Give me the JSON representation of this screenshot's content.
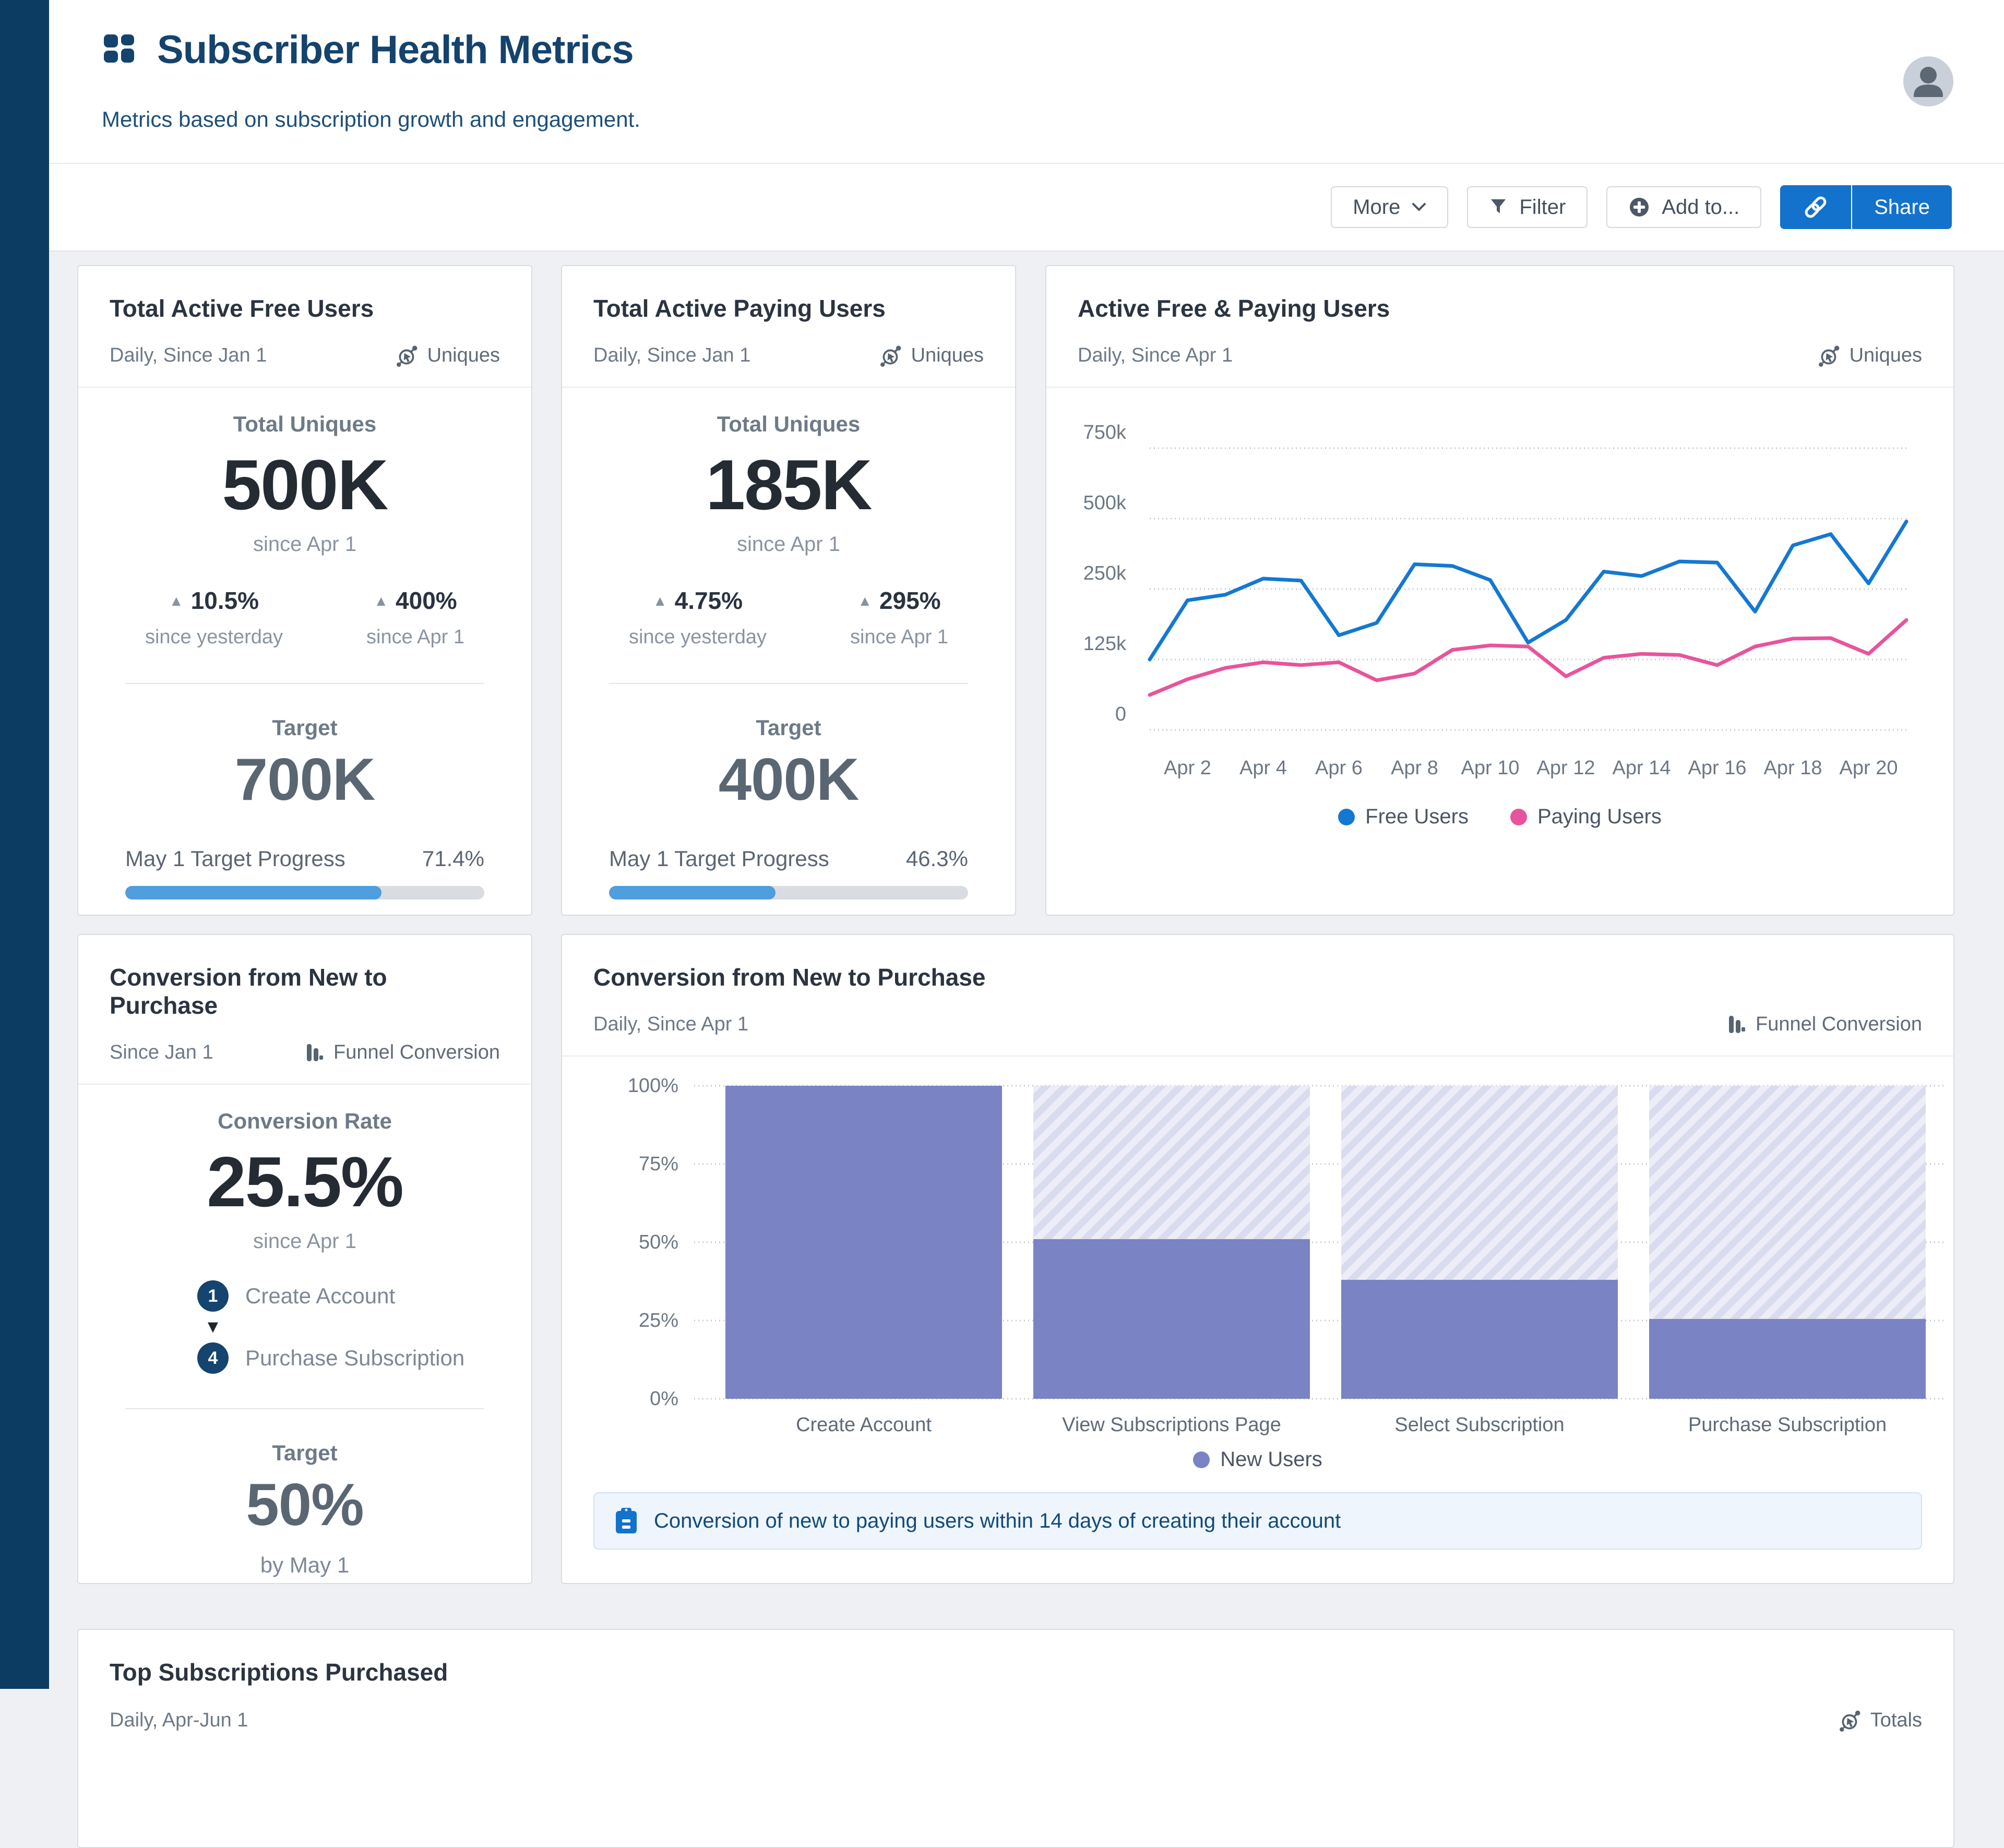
{
  "page": {
    "title": "Subscriber Health Metrics",
    "subtitle": "Metrics based on subscription growth and engagement."
  },
  "toolbar": {
    "more_label": "More",
    "filter_label": "Filter",
    "add_to_label": "Add to...",
    "share_label": "Share"
  },
  "colors": {
    "accent_blue": "#1272cc",
    "progress_blue": "#4f9edd",
    "line_blue": "#1478D2",
    "line_pink": "#E8549B",
    "bar_purple": "#7A83C3",
    "navy": "#14436d",
    "sidebar_navy": "#0d3c63"
  },
  "cards": {
    "free_users": {
      "title": "Total Active Free Users",
      "meta": "Daily, Since Jan 1",
      "badge": "Uniques",
      "metric_label": "Total Uniques",
      "value": "500K",
      "since": "since Apr 1",
      "delta1_value": "10.5%",
      "delta1_caption": "since yesterday",
      "delta2_value": "400%",
      "delta2_caption": "since Apr 1",
      "target_label": "Target",
      "target_value": "700K",
      "progress_label": "May 1 Target Progress",
      "progress_pct": "71.4%",
      "progress_width": 71.4
    },
    "paying_users": {
      "title": "Total Active Paying Users",
      "meta": "Daily, Since Jan 1",
      "badge": "Uniques",
      "metric_label": "Total Uniques",
      "value": "185K",
      "since": "since Apr 1",
      "delta1_value": "4.75%",
      "delta1_caption": "since yesterday",
      "delta2_value": "295%",
      "delta2_caption": "since Apr 1",
      "target_label": "Target",
      "target_value": "400K",
      "progress_label": "May 1 Target Progress",
      "progress_pct": "46.3%",
      "progress_width": 46.3
    },
    "line_chart_card": {
      "title": "Active Free & Paying Users",
      "meta": "Daily, Since Apr 1",
      "badge": "Uniques"
    },
    "funnel_kpi": {
      "title": "Conversion from New to Purchase",
      "meta": "Since Jan 1",
      "badge": "Funnel Conversion",
      "metric_label": "Conversion Rate",
      "value": "25.5%",
      "since": "since Apr 1",
      "steps": [
        {
          "num": "1",
          "label": "Create Account"
        },
        {
          "num": "4",
          "label": "Purchase Subscription"
        }
      ],
      "target_label": "Target",
      "target_value": "50%",
      "target_caption": "by May 1"
    },
    "funnel_chart_card": {
      "title": "Conversion from New to Purchase",
      "meta": "Daily, Since Apr 1",
      "badge": "Funnel Conversion",
      "note": "Conversion of new to paying users within 14 days of creating their account"
    },
    "bottom_card": {
      "title": "Top Subscriptions Purchased",
      "meta": "Daily, Apr-Jun 1",
      "badge": "Totals"
    }
  },
  "chart_data": [
    {
      "type": "line",
      "title": "Active Free & Paying Users",
      "x": [
        "Apr 1",
        "Apr 2",
        "Apr 3",
        "Apr 4",
        "Apr 5",
        "Apr 6",
        "Apr 7",
        "Apr 8",
        "Apr 9",
        "Apr 10",
        "Apr 11",
        "Apr 12",
        "Apr 13",
        "Apr 14",
        "Apr 15",
        "Apr 16",
        "Apr 17",
        "Apr 18",
        "Apr 19",
        "Apr 20",
        "Apr 21"
      ],
      "x_tick_labels": [
        "Apr 2",
        "Apr 4",
        "Apr 6",
        "Apr 8",
        "Apr 10",
        "Apr 12",
        "Apr 14",
        "Apr 16",
        "Apr 18",
        "Apr 20"
      ],
      "y_ticks": [
        "0",
        "125k",
        "250k",
        "500k",
        "750k"
      ],
      "y_tick_values": [
        0,
        125,
        250,
        500,
        750
      ],
      "y_unit": "thousands of users",
      "grid": "dotted",
      "legend_position": "bottom",
      "series": [
        {
          "name": "Free Users",
          "color": "#1478D2",
          "values": [
            125,
            230,
            240,
            287,
            280,
            168,
            190,
            338,
            332,
            282,
            155,
            195,
            312,
            296,
            348,
            344,
            210,
            405,
            445,
            270,
            490
          ]
        },
        {
          "name": "Paying Users",
          "color": "#E8549B",
          "values": [
            62,
            90,
            110,
            120,
            115,
            120,
            88,
            100,
            142,
            150,
            148,
            95,
            128,
            135,
            133,
            115,
            148,
            162,
            163,
            135,
            195
          ]
        }
      ]
    },
    {
      "type": "bar",
      "title": "Conversion from New to Purchase (funnel)",
      "categories": [
        "Create Account",
        "View Subscriptions Page",
        "Select Subscription",
        "Purchase Subscription"
      ],
      "values": [
        100,
        51,
        38,
        25.5
      ],
      "y_ticks": [
        "0%",
        "25%",
        "50%",
        "75%",
        "100%"
      ],
      "ylim": [
        0,
        100
      ],
      "grid": "dotted",
      "series_name": "New Users",
      "bar_color": "#7A83C3",
      "remainder_style": "hatched"
    }
  ]
}
